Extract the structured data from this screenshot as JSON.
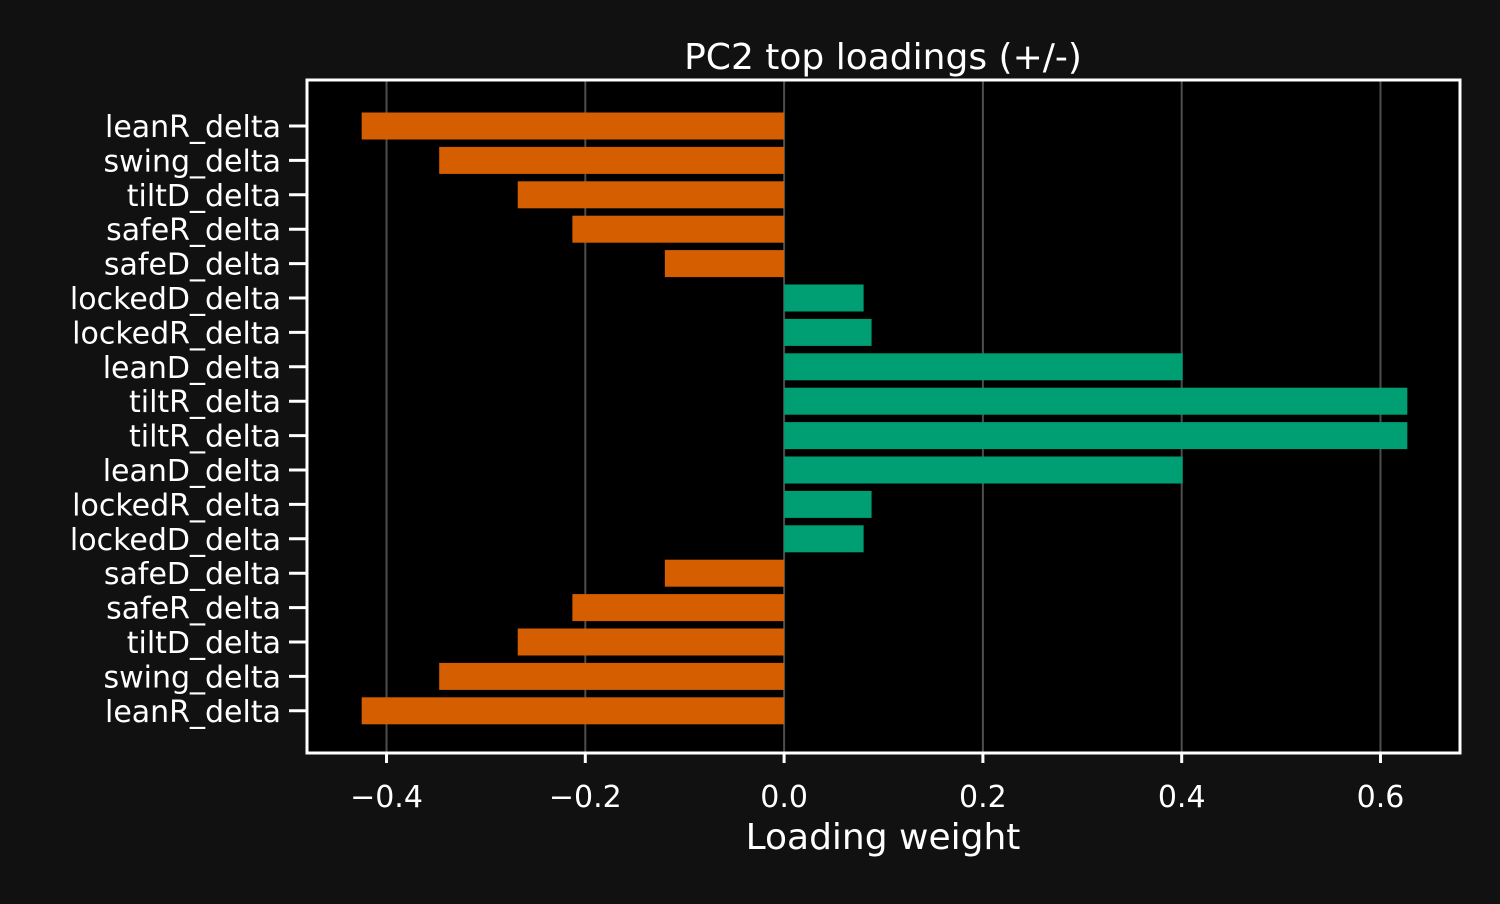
{
  "colors": {
    "figure_background": "#111111",
    "plot_background": "#000000",
    "negative_bar": "#d55e00",
    "positive_bar": "#009e73",
    "axis": "#ffffff",
    "grid": "#4d4d4d",
    "text": "#ffffff"
  },
  "chart_data": {
    "type": "bar",
    "orientation": "horizontal",
    "title": "PC2 top loadings (+/-)",
    "xlabel": "Loading weight",
    "ylabel": "",
    "xlim": [
      -0.48,
      0.68
    ],
    "x_ticks": [
      -0.4,
      -0.2,
      0.0,
      0.2,
      0.4,
      0.6
    ],
    "x_tick_labels": [
      "−0.4",
      "−0.2",
      "0.0",
      "0.2",
      "0.4",
      "0.6"
    ],
    "grid": "vertical",
    "legend": "none",
    "categories": [
      "leanR_delta",
      "swing_delta",
      "tiltD_delta",
      "safeR_delta",
      "safeD_delta",
      "lockedD_delta",
      "lockedR_delta",
      "leanD_delta",
      "tiltR_delta",
      "tiltR_delta",
      "leanD_delta",
      "lockedR_delta",
      "lockedD_delta",
      "safeD_delta",
      "safeR_delta",
      "tiltD_delta",
      "swing_delta",
      "leanR_delta"
    ],
    "values": [
      -0.425,
      -0.347,
      -0.268,
      -0.213,
      -0.12,
      0.08,
      0.088,
      0.401,
      0.627,
      0.627,
      0.401,
      0.088,
      0.08,
      -0.12,
      -0.213,
      -0.268,
      -0.347,
      -0.425
    ]
  }
}
